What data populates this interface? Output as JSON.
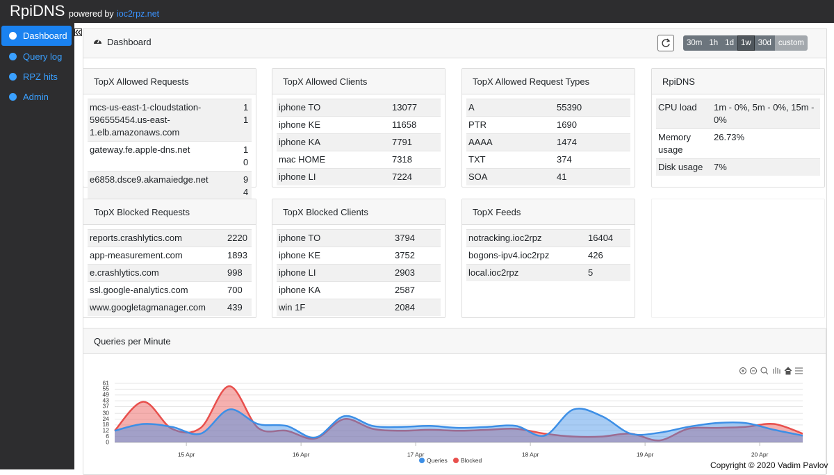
{
  "header": {
    "brand": "RpiDNS",
    "powered": "powered by",
    "link": "ioc2rpz.net"
  },
  "sidebar": {
    "items": [
      "Dashboard",
      "Query log",
      "RPZ hits",
      "Admin"
    ],
    "active": "Dashboard"
  },
  "dashboard": {
    "title": "Dashboard",
    "periods": [
      "30m",
      "1h",
      "1d",
      "1w",
      "30d",
      "custom"
    ],
    "active_period": "1w"
  },
  "panels": [
    {
      "title": "TopX Allowed Requests",
      "rows": [
        [
          "mcs-us-east-1-cloudstation-596555454.us-east-1.elb.amazonaws.com",
          "11"
        ],
        [
          "gateway.fe.apple-dns.net",
          "10"
        ],
        [
          "e6858.dsce9.akamaiedge.net",
          "94"
        ]
      ]
    },
    {
      "title": "TopX Allowed Clients",
      "rows": [
        [
          "iphone TO",
          13077
        ],
        [
          "iphone KE",
          11658
        ],
        [
          "iphone KA",
          7791
        ],
        [
          "mac HOME",
          7318
        ],
        [
          "iphone LI",
          7224
        ]
      ]
    },
    {
      "title": "TopX Allowed Request Types",
      "rows": [
        [
          "A",
          55390
        ],
        [
          "PTR",
          1690
        ],
        [
          "AAAA",
          1474
        ],
        [
          "TXT",
          374
        ],
        [
          "SOA",
          41
        ]
      ]
    },
    {
      "title": "RpiDNS",
      "rows": [
        [
          "CPU load",
          "1m - 0%, 5m - 0%, 15m - 0%"
        ],
        [
          "Memory usage",
          "26.73%"
        ],
        [
          "Disk usage",
          "7%"
        ]
      ]
    },
    {
      "title": "TopX Blocked Requests",
      "rows": [
        [
          "reports.crashlytics.com",
          2220
        ],
        [
          "app-measurement.com",
          1893
        ],
        [
          "e.crashlytics.com",
          998
        ],
        [
          "ssl.google-analytics.com",
          700
        ],
        [
          "www.googletagmanager.com",
          439
        ]
      ]
    },
    {
      "title": "TopX Blocked Clients",
      "rows": [
        [
          "iphone TO",
          3794
        ],
        [
          "iphone KE",
          3752
        ],
        [
          "iphone LI",
          2903
        ],
        [
          "iphone KA",
          2587
        ],
        [
          "win 1F",
          2084
        ]
      ]
    },
    {
      "title": "TopX Feeds",
      "rows": [
        [
          "notracking.ioc2rpz",
          16404
        ],
        [
          "bogons-ipv4.ioc2rpz",
          426
        ],
        [
          "local.ioc2rpz",
          5
        ]
      ]
    }
  ],
  "chart": {
    "type": "area",
    "title": "Queries per Minute",
    "x": [
      9,
      15,
      21,
      27,
      33,
      39,
      45,
      51,
      57,
      63,
      69,
      75,
      81,
      87,
      93,
      99,
      105,
      111,
      117,
      123,
      129,
      135,
      141,
      147,
      153
    ],
    "xlim": [
      9,
      153
    ],
    "xticks": [
      {
        "value": 24,
        "label": "15 Apr"
      },
      {
        "value": 48,
        "label": "16 Apr"
      },
      {
        "value": 72,
        "label": "17 Apr"
      },
      {
        "value": 96,
        "label": "18 Apr"
      },
      {
        "value": 120,
        "label": "19 Apr"
      },
      {
        "value": 144,
        "label": "20 Apr"
      }
    ],
    "ylim": [
      0,
      61
    ],
    "yticks": [
      0,
      6,
      12,
      18,
      24,
      30,
      37,
      43,
      49,
      55,
      61
    ],
    "grid": true,
    "series": [
      {
        "name": "Queries",
        "color": "#3d8fe6",
        "values": [
          12,
          19,
          16,
          9,
          34,
          19,
          17,
          5,
          27,
          17,
          16,
          17,
          15,
          16,
          17,
          7,
          34,
          27,
          9,
          10,
          16,
          20,
          20,
          13,
          7
        ]
      },
      {
        "name": "Blocked",
        "color": "#e8504d",
        "values": [
          12,
          42,
          14,
          15,
          58,
          15,
          12,
          4,
          24,
          14,
          12,
          13,
          12,
          13,
          14,
          9,
          6,
          6,
          9,
          2,
          14,
          15,
          16,
          19,
          9
        ]
      }
    ]
  },
  "footer": {
    "copyright": "Copyright © 2020 Vadim Pavlov"
  }
}
